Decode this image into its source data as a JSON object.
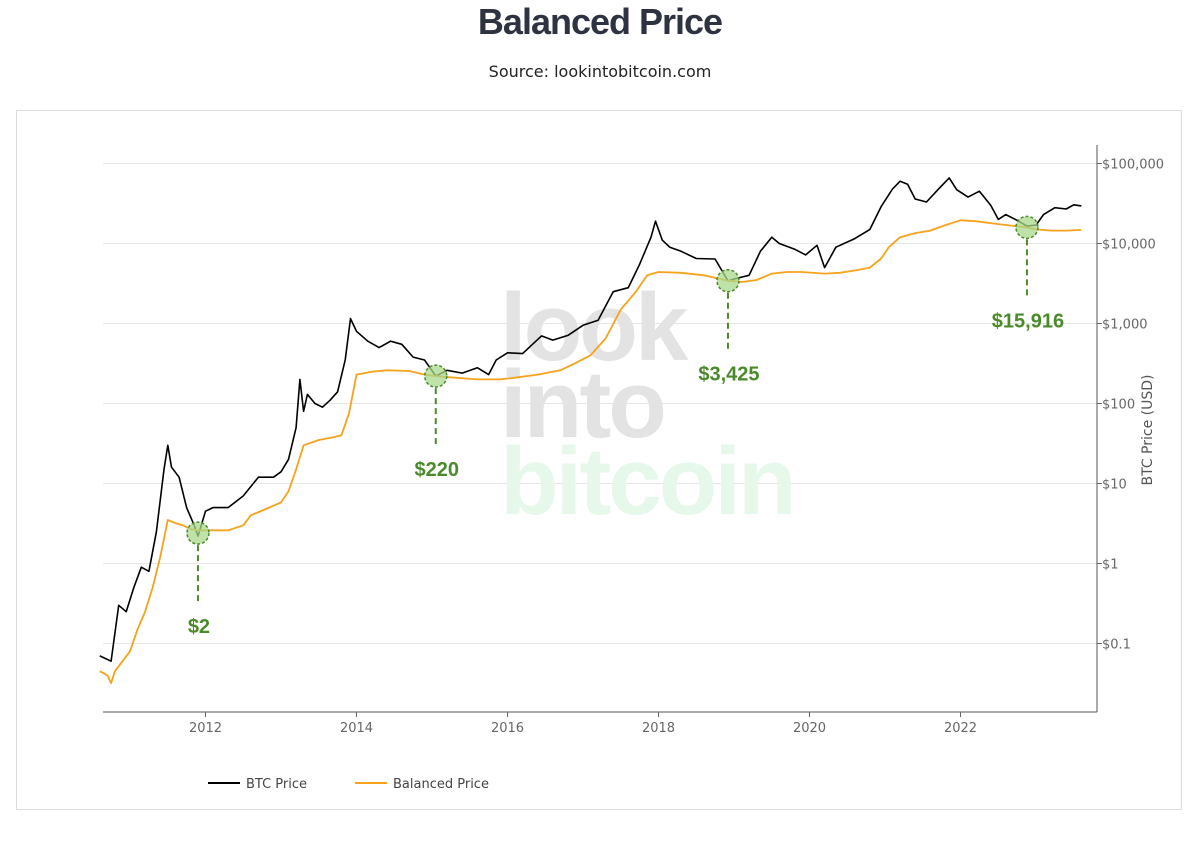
{
  "title": "Balanced Price",
  "subtitle": "Source: lookintobitcoin.com",
  "colors": {
    "btc_price": "#000000",
    "balanced_price": "#f7a21b",
    "annotation": "#4a8a2a",
    "annotation_fill": "#a8d88a",
    "grid": "#e6e6e6"
  },
  "watermark": [
    "look",
    "into",
    "bitcoin"
  ],
  "chart_data": {
    "type": "line",
    "title": "",
    "xlabel": "",
    "ylabel": "BTC Price (USD)",
    "yscale": "log",
    "xlim": [
      2010.6,
      2023.8
    ],
    "ylim": [
      0.01,
      150000
    ],
    "y_ticks": [
      {
        "value": 100000,
        "label": "$100,000"
      },
      {
        "value": 10000,
        "label": "$10,000"
      },
      {
        "value": 1000,
        "label": "$1,000"
      },
      {
        "value": 100,
        "label": "$100"
      },
      {
        "value": 10,
        "label": "$10"
      },
      {
        "value": 1,
        "label": "$1"
      },
      {
        "value": 0.1,
        "label": "$0.1"
      }
    ],
    "x_ticks": [
      {
        "value": 2012,
        "label": "2012"
      },
      {
        "value": 2014,
        "label": "2014"
      },
      {
        "value": 2016,
        "label": "2016"
      },
      {
        "value": 2018,
        "label": "2018"
      },
      {
        "value": 2020,
        "label": "2020"
      },
      {
        "value": 2022,
        "label": "2022"
      }
    ],
    "grid": true,
    "legend": "bottom-left",
    "series": [
      {
        "name": "BTC Price",
        "points": [
          [
            2010.6,
            0.07
          ],
          [
            2010.75,
            0.06
          ],
          [
            2010.85,
            0.3
          ],
          [
            2010.95,
            0.25
          ],
          [
            2011.05,
            0.5
          ],
          [
            2011.15,
            0.9
          ],
          [
            2011.25,
            0.8
          ],
          [
            2011.35,
            2.5
          ],
          [
            2011.45,
            15
          ],
          [
            2011.5,
            30
          ],
          [
            2011.55,
            16
          ],
          [
            2011.65,
            12
          ],
          [
            2011.75,
            5
          ],
          [
            2011.85,
            3
          ],
          [
            2011.9,
            2.2
          ],
          [
            2012.0,
            4.5
          ],
          [
            2012.1,
            5
          ],
          [
            2012.3,
            5
          ],
          [
            2012.5,
            7
          ],
          [
            2012.7,
            12
          ],
          [
            2012.9,
            12
          ],
          [
            2013.0,
            14
          ],
          [
            2013.1,
            20
          ],
          [
            2013.2,
            50
          ],
          [
            2013.25,
            200
          ],
          [
            2013.3,
            80
          ],
          [
            2013.35,
            130
          ],
          [
            2013.45,
            100
          ],
          [
            2013.55,
            90
          ],
          [
            2013.65,
            110
          ],
          [
            2013.75,
            140
          ],
          [
            2013.85,
            350
          ],
          [
            2013.92,
            1150
          ],
          [
            2014.0,
            800
          ],
          [
            2014.15,
            600
          ],
          [
            2014.3,
            500
          ],
          [
            2014.45,
            600
          ],
          [
            2014.6,
            550
          ],
          [
            2014.75,
            380
          ],
          [
            2014.9,
            350
          ],
          [
            2015.05,
            220
          ],
          [
            2015.2,
            260
          ],
          [
            2015.4,
            240
          ],
          [
            2015.6,
            280
          ],
          [
            2015.75,
            230
          ],
          [
            2015.85,
            350
          ],
          [
            2016.0,
            430
          ],
          [
            2016.2,
            420
          ],
          [
            2016.45,
            700
          ],
          [
            2016.6,
            620
          ],
          [
            2016.8,
            710
          ],
          [
            2017.0,
            950
          ],
          [
            2017.2,
            1100
          ],
          [
            2017.4,
            2500
          ],
          [
            2017.6,
            2800
          ],
          [
            2017.75,
            5500
          ],
          [
            2017.9,
            12000
          ],
          [
            2017.96,
            19000
          ],
          [
            2018.05,
            11000
          ],
          [
            2018.15,
            9000
          ],
          [
            2018.3,
            8000
          ],
          [
            2018.5,
            6500
          ],
          [
            2018.75,
            6400
          ],
          [
            2018.92,
            3400
          ],
          [
            2019.0,
            3600
          ],
          [
            2019.2,
            4000
          ],
          [
            2019.35,
            8000
          ],
          [
            2019.5,
            12000
          ],
          [
            2019.6,
            10000
          ],
          [
            2019.8,
            8500
          ],
          [
            2019.95,
            7200
          ],
          [
            2020.1,
            9500
          ],
          [
            2020.2,
            5000
          ],
          [
            2020.35,
            9000
          ],
          [
            2020.6,
            11500
          ],
          [
            2020.8,
            15000
          ],
          [
            2020.95,
            29000
          ],
          [
            2021.1,
            48000
          ],
          [
            2021.2,
            60000
          ],
          [
            2021.3,
            55000
          ],
          [
            2021.4,
            36000
          ],
          [
            2021.55,
            33000
          ],
          [
            2021.7,
            47000
          ],
          [
            2021.85,
            66000
          ],
          [
            2021.95,
            47000
          ],
          [
            2022.1,
            38000
          ],
          [
            2022.25,
            45000
          ],
          [
            2022.4,
            30000
          ],
          [
            2022.5,
            20000
          ],
          [
            2022.6,
            23000
          ],
          [
            2022.75,
            19500
          ],
          [
            2022.88,
            16500
          ],
          [
            2023.0,
            17000
          ],
          [
            2023.1,
            23000
          ],
          [
            2023.25,
            28000
          ],
          [
            2023.4,
            27000
          ],
          [
            2023.5,
            30500
          ],
          [
            2023.6,
            29500
          ]
        ]
      },
      {
        "name": "Balanced Price",
        "points": [
          [
            2010.6,
            0.045
          ],
          [
            2010.7,
            0.04
          ],
          [
            2010.75,
            0.032
          ],
          [
            2010.8,
            0.045
          ],
          [
            2010.9,
            0.06
          ],
          [
            2011.0,
            0.08
          ],
          [
            2011.1,
            0.15
          ],
          [
            2011.2,
            0.25
          ],
          [
            2011.3,
            0.5
          ],
          [
            2011.4,
            1.2
          ],
          [
            2011.5,
            3.5
          ],
          [
            2011.6,
            3.2
          ],
          [
            2011.7,
            3.0
          ],
          [
            2011.8,
            2.7
          ],
          [
            2011.9,
            2.6
          ],
          [
            2012.0,
            2.6
          ],
          [
            2012.3,
            2.6
          ],
          [
            2012.5,
            3.0
          ],
          [
            2012.6,
            4.0
          ],
          [
            2012.8,
            4.8
          ],
          [
            2013.0,
            5.8
          ],
          [
            2013.1,
            8
          ],
          [
            2013.2,
            15
          ],
          [
            2013.3,
            30
          ],
          [
            2013.5,
            35
          ],
          [
            2013.7,
            38
          ],
          [
            2013.8,
            40
          ],
          [
            2013.9,
            75
          ],
          [
            2014.0,
            230
          ],
          [
            2014.2,
            250
          ],
          [
            2014.4,
            260
          ],
          [
            2014.7,
            255
          ],
          [
            2014.9,
            230
          ],
          [
            2015.05,
            220
          ],
          [
            2015.3,
            210
          ],
          [
            2015.6,
            200
          ],
          [
            2015.9,
            200
          ],
          [
            2016.1,
            210
          ],
          [
            2016.4,
            230
          ],
          [
            2016.7,
            260
          ],
          [
            2016.9,
            320
          ],
          [
            2017.1,
            400
          ],
          [
            2017.3,
            650
          ],
          [
            2017.5,
            1500
          ],
          [
            2017.7,
            2500
          ],
          [
            2017.85,
            4000
          ],
          [
            2018.0,
            4400
          ],
          [
            2018.3,
            4300
          ],
          [
            2018.6,
            4000
          ],
          [
            2018.92,
            3425
          ],
          [
            2019.1,
            3300
          ],
          [
            2019.3,
            3500
          ],
          [
            2019.5,
            4200
          ],
          [
            2019.7,
            4400
          ],
          [
            2019.9,
            4400
          ],
          [
            2020.2,
            4200
          ],
          [
            2020.4,
            4300
          ],
          [
            2020.6,
            4600
          ],
          [
            2020.8,
            5000
          ],
          [
            2020.95,
            6500
          ],
          [
            2021.05,
            9000
          ],
          [
            2021.2,
            12000
          ],
          [
            2021.4,
            13500
          ],
          [
            2021.6,
            14500
          ],
          [
            2021.8,
            17000
          ],
          [
            2022.0,
            19500
          ],
          [
            2022.2,
            19000
          ],
          [
            2022.5,
            17500
          ],
          [
            2022.8,
            16200
          ],
          [
            2022.88,
            15916
          ],
          [
            2023.0,
            15000
          ],
          [
            2023.2,
            14500
          ],
          [
            2023.4,
            14500
          ],
          [
            2023.6,
            14800
          ]
        ]
      }
    ],
    "annotations": [
      {
        "x": 2011.9,
        "y": 2.4,
        "label": "$2"
      },
      {
        "x": 2015.05,
        "y": 220,
        "label": "$220"
      },
      {
        "x": 2018.92,
        "y": 3425,
        "label": "$3,425"
      },
      {
        "x": 2022.88,
        "y": 15916,
        "label": "$15,916"
      }
    ]
  }
}
